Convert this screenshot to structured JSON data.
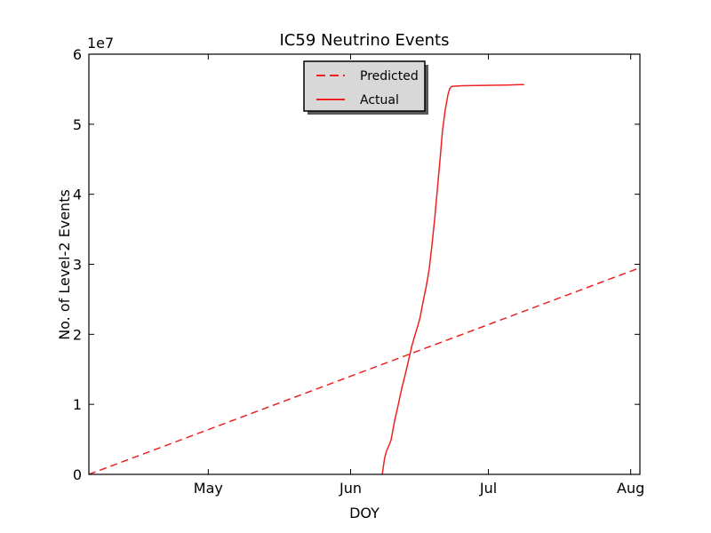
{
  "figure": {
    "background": "#ffffff"
  },
  "chart_data": {
    "type": "line",
    "title": "IC59 Neutrino Events",
    "xlabel": "DOY",
    "ylabel": "No. of Level-2 Events",
    "y_offset_label": "1e7",
    "xlim": [
      95,
      215
    ],
    "ylim": [
      0,
      60000000
    ],
    "grid": false,
    "x_ticks": [
      {
        "doy": 121,
        "label": "May"
      },
      {
        "doy": 152,
        "label": "Jun"
      },
      {
        "doy": 182,
        "label": "Jul"
      },
      {
        "doy": 213,
        "label": "Aug"
      }
    ],
    "y_ticks": [
      {
        "value": 0,
        "label": "0"
      },
      {
        "value": 10000000,
        "label": "1"
      },
      {
        "value": 20000000,
        "label": "2"
      },
      {
        "value": 30000000,
        "label": "3"
      },
      {
        "value": 40000000,
        "label": "4"
      },
      {
        "value": 50000000,
        "label": "5"
      },
      {
        "value": 60000000,
        "label": "6"
      }
    ],
    "legend": {
      "position": "upper center",
      "shadow": true,
      "items": [
        {
          "label": "Predicted",
          "line_style": "dashed"
        },
        {
          "label": "Actual",
          "line_style": "solid"
        }
      ]
    },
    "colors": {
      "line": "#ee2222",
      "axis": "#000000",
      "legend_bg": "#d8d8d8",
      "legend_border": "#000000",
      "legend_shadow": "#595959"
    },
    "series": [
      {
        "name": "Predicted",
        "line_style": "dashed",
        "color": "#ee2222",
        "points": [
          [
            95,
            0
          ],
          [
            215,
            29500000
          ]
        ]
      },
      {
        "name": "Actual",
        "line_style": "solid",
        "color": "#ee2222",
        "points": [
          [
            158.9,
            0
          ],
          [
            159.4,
            2300000
          ],
          [
            159.8,
            3300000
          ],
          [
            160.4,
            4200000
          ],
          [
            160.8,
            4900000
          ],
          [
            161.6,
            7700000
          ],
          [
            162.4,
            10000000
          ],
          [
            163.1,
            12200000
          ],
          [
            163.9,
            14300000
          ],
          [
            164.7,
            16500000
          ],
          [
            165.4,
            18500000
          ],
          [
            166.2,
            20300000
          ],
          [
            166.8,
            21600000
          ],
          [
            167.2,
            22600000
          ],
          [
            167.8,
            24700000
          ],
          [
            168.4,
            26600000
          ],
          [
            168.7,
            27700000
          ],
          [
            169.1,
            29300000
          ],
          [
            169.7,
            32600000
          ],
          [
            170.3,
            36500000
          ],
          [
            170.9,
            40700000
          ],
          [
            171.5,
            45200000
          ],
          [
            172.0,
            49000000
          ],
          [
            172.6,
            52000000
          ],
          [
            173.2,
            54200000
          ],
          [
            173.6,
            55100000
          ],
          [
            174.0,
            55400000
          ],
          [
            176.3,
            55500000
          ],
          [
            181.1,
            55550000
          ],
          [
            186.0,
            55600000
          ],
          [
            189.0,
            55650000
          ],
          [
            189.8,
            55650000
          ]
        ]
      }
    ]
  }
}
